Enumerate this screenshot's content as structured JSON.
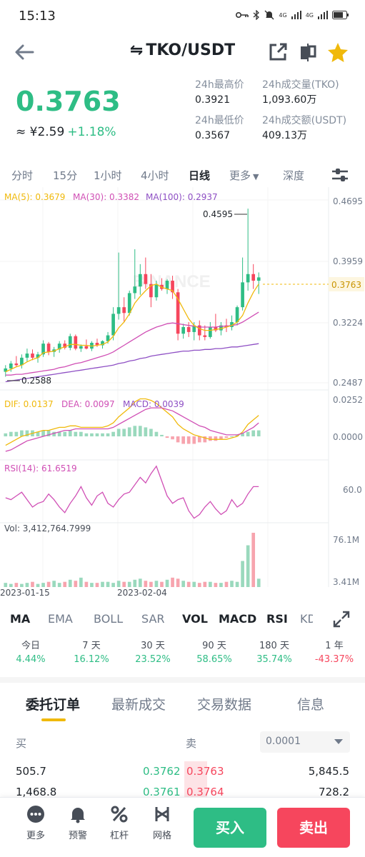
{
  "status": {
    "time": "15:13",
    "net1": "4G",
    "net2": "4G",
    "battery": "battery-icon"
  },
  "header": {
    "swap_icon": "⇋",
    "pair": "TKO/USDT"
  },
  "ticker": {
    "last_price": "0.3763",
    "fiat_price": "≈ ¥2.59",
    "change_pct": "+1.18%",
    "high_label": "24h最高价",
    "high_value": "0.3921",
    "low_label": "24h最低价",
    "low_value": "0.3567",
    "vol_base_label": "24h成交量(TKO)",
    "vol_base_value": "1,093.60万",
    "vol_quote_label": "24h成交额(USDT)",
    "vol_quote_value": "409.13万"
  },
  "intervals": {
    "items": [
      "分时",
      "15分",
      "1小时",
      "4小时",
      "日线",
      "更多",
      "深度"
    ],
    "active": "日线"
  },
  "chart": {
    "ma_labels": [
      "MA(5): 0.3679",
      "MA(30): 0.3382",
      "MA(100): 0.2937"
    ],
    "price_ticks": [
      "0.4695",
      "0.3959",
      "0.3224",
      "0.2487"
    ],
    "current_price_tag": "0.3763",
    "high_marker": "0.4595",
    "low_marker": "0.2588",
    "watermark": "BINANCE",
    "macd_labels": [
      "DIF: 0.0137",
      "DEA: 0.0097",
      "MACD: 0.0039"
    ],
    "macd_ticks": [
      "0.0252",
      "0.0000"
    ],
    "rsi_label": "RSI(14): 61.6519",
    "rsi_tick": "60.0",
    "vol_label": "Vol: 3,412,764.7999",
    "vol_ticks": [
      "76.1M",
      "3.41M"
    ],
    "date_labels": [
      "2023-01-15",
      "2023-02-04"
    ],
    "colors": {
      "up": "#2ebd85",
      "down": "#f6465d",
      "ma5": "#f0b90b",
      "ma30": "#d04fb5",
      "ma100": "#8e4fc4"
    }
  },
  "chart_data": {
    "type": "candlestick",
    "series": [
      {
        "name": "MA(5)",
        "values": []
      },
      {
        "name": "MA(30)",
        "values": []
      },
      {
        "name": "MA(100)",
        "values": []
      }
    ],
    "ylim": [
      0.2487,
      0.4695
    ],
    "candles": [
      [
        0.262,
        0.27,
        0.256,
        0.266
      ],
      [
        0.266,
        0.275,
        0.262,
        0.272
      ],
      [
        0.272,
        0.281,
        0.268,
        0.27
      ],
      [
        0.27,
        0.283,
        0.266,
        0.279
      ],
      [
        0.279,
        0.29,
        0.274,
        0.284
      ],
      [
        0.284,
        0.289,
        0.276,
        0.279
      ],
      [
        0.279,
        0.286,
        0.273,
        0.283
      ],
      [
        0.283,
        0.3,
        0.28,
        0.296
      ],
      [
        0.296,
        0.298,
        0.282,
        0.286
      ],
      [
        0.286,
        0.292,
        0.28,
        0.289
      ],
      [
        0.289,
        0.299,
        0.285,
        0.296
      ],
      [
        0.296,
        0.3,
        0.289,
        0.291
      ],
      [
        0.291,
        0.308,
        0.288,
        0.305
      ],
      [
        0.305,
        0.307,
        0.288,
        0.29
      ],
      [
        0.29,
        0.295,
        0.286,
        0.293
      ],
      [
        0.293,
        0.301,
        0.289,
        0.29
      ],
      [
        0.29,
        0.299,
        0.287,
        0.297
      ],
      [
        0.297,
        0.302,
        0.292,
        0.294
      ],
      [
        0.294,
        0.3,
        0.29,
        0.299
      ],
      [
        0.299,
        0.31,
        0.296,
        0.306
      ],
      [
        0.306,
        0.34,
        0.3,
        0.332
      ],
      [
        0.332,
        0.406,
        0.325,
        0.34
      ],
      [
        0.34,
        0.352,
        0.322,
        0.333
      ],
      [
        0.333,
        0.36,
        0.33,
        0.357
      ],
      [
        0.357,
        0.41,
        0.35,
        0.365
      ],
      [
        0.365,
        0.392,
        0.355,
        0.38
      ],
      [
        0.38,
        0.4,
        0.362,
        0.368
      ],
      [
        0.368,
        0.38,
        0.34,
        0.352
      ],
      [
        0.352,
        0.372,
        0.348,
        0.367
      ],
      [
        0.367,
        0.375,
        0.36,
        0.362
      ],
      [
        0.362,
        0.374,
        0.356,
        0.372
      ],
      [
        0.372,
        0.378,
        0.35,
        0.358
      ],
      [
        0.358,
        0.362,
        0.3,
        0.308
      ],
      [
        0.308,
        0.32,
        0.302,
        0.316
      ],
      [
        0.316,
        0.322,
        0.304,
        0.31
      ],
      [
        0.31,
        0.322,
        0.3,
        0.318
      ],
      [
        0.318,
        0.324,
        0.3,
        0.306
      ],
      [
        0.306,
        0.318,
        0.3,
        0.304
      ],
      [
        0.304,
        0.322,
        0.302,
        0.316
      ],
      [
        0.316,
        0.332,
        0.31,
        0.312
      ],
      [
        0.312,
        0.322,
        0.306,
        0.318
      ],
      [
        0.318,
        0.326,
        0.31,
        0.316
      ],
      [
        0.316,
        0.33,
        0.312,
        0.322
      ],
      [
        0.322,
        0.342,
        0.318,
        0.34
      ],
      [
        0.34,
        0.4,
        0.336,
        0.37
      ],
      [
        0.37,
        0.459,
        0.36,
        0.38
      ],
      [
        0.38,
        0.392,
        0.362,
        0.372
      ],
      [
        0.372,
        0.382,
        0.356,
        0.376
      ]
    ],
    "ma5": [
      0.262,
      0.265,
      0.268,
      0.27,
      0.274,
      0.277,
      0.279,
      0.285,
      0.286,
      0.287,
      0.29,
      0.292,
      0.295,
      0.295,
      0.294,
      0.294,
      0.293,
      0.294,
      0.295,
      0.298,
      0.305,
      0.315,
      0.322,
      0.332,
      0.345,
      0.353,
      0.36,
      0.366,
      0.368,
      0.364,
      0.362,
      0.36,
      0.35,
      0.338,
      0.326,
      0.318,
      0.314,
      0.312,
      0.312,
      0.313,
      0.314,
      0.316,
      0.318,
      0.322,
      0.33,
      0.345,
      0.358,
      0.368
    ],
    "ma30": [
      0.258,
      0.258,
      0.259,
      0.259,
      0.26,
      0.261,
      0.262,
      0.263,
      0.264,
      0.265,
      0.267,
      0.268,
      0.27,
      0.272,
      0.273,
      0.275,
      0.277,
      0.279,
      0.281,
      0.283,
      0.286,
      0.29,
      0.294,
      0.298,
      0.302,
      0.306,
      0.31,
      0.313,
      0.316,
      0.318,
      0.32,
      0.321,
      0.32,
      0.319,
      0.318,
      0.317,
      0.316,
      0.316,
      0.316,
      0.316,
      0.317,
      0.317,
      0.318,
      0.319,
      0.322,
      0.326,
      0.33,
      0.334
    ],
    "ma100": [
      0.25,
      0.251,
      0.252,
      0.253,
      0.254,
      0.255,
      0.256,
      0.257,
      0.258,
      0.259,
      0.26,
      0.261,
      0.262,
      0.263,
      0.264,
      0.265,
      0.266,
      0.267,
      0.268,
      0.269,
      0.27,
      0.272,
      0.273,
      0.275,
      0.276,
      0.278,
      0.279,
      0.281,
      0.282,
      0.283,
      0.284,
      0.285,
      0.286,
      0.287,
      0.287,
      0.288,
      0.288,
      0.289,
      0.289,
      0.29,
      0.29,
      0.291,
      0.292,
      0.292,
      0.293,
      0.294,
      0.295,
      0.296
    ],
    "macd_hist": [
      0.002,
      0.003,
      0.003,
      0.004,
      0.004,
      0.004,
      0.003,
      0.004,
      0.004,
      0.003,
      0.003,
      0.003,
      0.004,
      0.003,
      0.003,
      0.002,
      0.002,
      0.002,
      0.002,
      0.002,
      0.003,
      0.005,
      0.005,
      0.006,
      0.007,
      0.007,
      0.006,
      0.005,
      0.003,
      0.001,
      -0.001,
      -0.002,
      -0.004,
      -0.005,
      -0.005,
      -0.005,
      -0.004,
      -0.004,
      -0.003,
      -0.003,
      -0.002,
      -0.001,
      0.0,
      0.001,
      0.002,
      0.003,
      0.004,
      0.004
    ],
    "dif": [
      -0.006,
      -0.004,
      -0.002,
      0.0,
      0.001,
      0.002,
      0.003,
      0.004,
      0.004,
      0.005,
      0.006,
      0.006,
      0.007,
      0.007,
      0.006,
      0.006,
      0.006,
      0.006,
      0.006,
      0.007,
      0.009,
      0.013,
      0.016,
      0.019,
      0.023,
      0.025,
      0.025,
      0.024,
      0.022,
      0.019,
      0.016,
      0.013,
      0.008,
      0.005,
      0.003,
      0.001,
      0.0,
      -0.001,
      -0.002,
      -0.002,
      -0.002,
      -0.002,
      -0.001,
      0.0,
      0.003,
      0.008,
      0.011,
      0.014
    ],
    "dea": [
      -0.01,
      -0.009,
      -0.007,
      -0.005,
      -0.003,
      -0.002,
      -0.001,
      0.0,
      0.001,
      0.002,
      0.003,
      0.004,
      0.004,
      0.005,
      0.005,
      0.005,
      0.005,
      0.005,
      0.005,
      0.005,
      0.006,
      0.008,
      0.01,
      0.012,
      0.014,
      0.016,
      0.018,
      0.019,
      0.019,
      0.019,
      0.018,
      0.017,
      0.015,
      0.013,
      0.011,
      0.009,
      0.007,
      0.006,
      0.004,
      0.003,
      0.002,
      0.001,
      0.001,
      0.001,
      0.002,
      0.004,
      0.006,
      0.009
    ],
    "rsi": [
      55,
      54,
      56,
      58,
      54,
      50,
      52,
      53,
      57,
      54,
      50,
      47,
      52,
      56,
      61,
      55,
      51,
      56,
      58,
      52,
      50,
      54,
      57,
      58,
      62,
      66,
      63,
      68,
      72,
      64,
      56,
      52,
      54,
      55,
      48,
      44,
      46,
      50,
      53,
      49,
      46,
      48,
      54,
      50,
      52,
      57,
      61,
      61
    ],
    "volume": [
      4,
      3,
      4,
      3,
      4,
      5,
      3,
      4,
      5,
      6,
      4,
      5,
      7,
      6,
      9,
      5,
      4,
      4,
      5,
      5,
      4,
      6,
      5,
      5,
      7,
      8,
      6,
      5,
      6,
      5,
      7,
      9,
      8,
      6,
      5,
      5,
      4,
      5,
      5,
      4,
      4,
      5,
      6,
      5,
      25,
      40,
      52,
      8
    ]
  },
  "indicators": {
    "items": [
      "MA",
      "EMA",
      "BOLL",
      "SAR",
      "VOL",
      "MACD",
      "RSI",
      "KD"
    ],
    "selected": [
      "MA",
      "VOL",
      "MACD",
      "RSI"
    ]
  },
  "performance": [
    {
      "label": "今日",
      "value": "4.44%",
      "dir": "up"
    },
    {
      "label": "7 天",
      "value": "16.12%",
      "dir": "up"
    },
    {
      "label": "30 天",
      "value": "23.52%",
      "dir": "up"
    },
    {
      "label": "90 天",
      "value": "58.65%",
      "dir": "up"
    },
    {
      "label": "180 天",
      "value": "35.74%",
      "dir": "up"
    },
    {
      "label": "1 年",
      "value": "-43.37%",
      "dir": "down"
    }
  ],
  "tabs": {
    "items": [
      "委托订单",
      "最新成交",
      "交易数据",
      "信息"
    ],
    "active": "委托订单"
  },
  "orderbook": {
    "buy_label": "买",
    "sell_label": "卖",
    "precision": "0.0001",
    "rows": [
      {
        "bid_qty": "505.7",
        "bid_price": "0.3762",
        "ask_price": "0.3763",
        "ask_qty": "5,845.5"
      },
      {
        "bid_qty": "1,468.8",
        "bid_price": "0.3761",
        "ask_price": "0.3764",
        "ask_qty": "728.2"
      }
    ]
  },
  "bottom": {
    "more": "更多",
    "alert": "预警",
    "leverage": "杠杆",
    "grid": "网格",
    "buy": "买入",
    "sell": "卖出"
  }
}
